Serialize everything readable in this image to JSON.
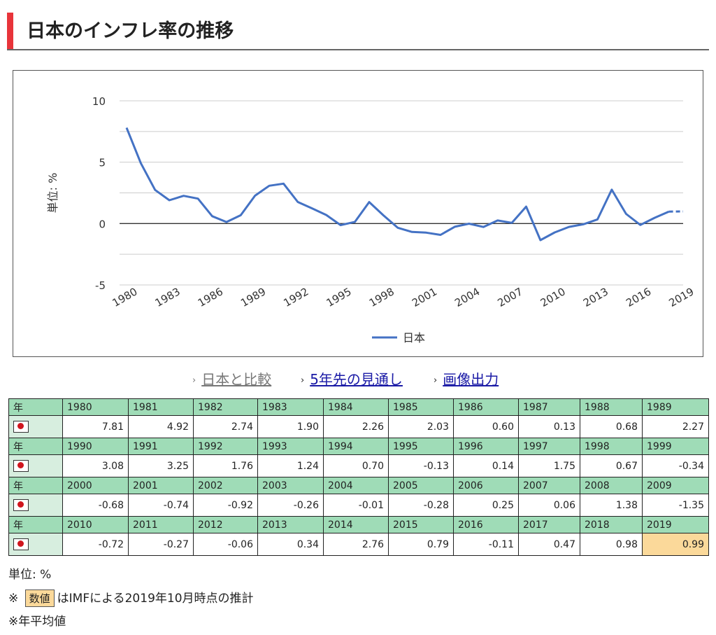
{
  "page": {
    "title": "日本のインフレ率の推移"
  },
  "chart_data": {
    "type": "line",
    "x": [
      1980,
      1981,
      1982,
      1983,
      1984,
      1985,
      1986,
      1987,
      1988,
      1989,
      1990,
      1991,
      1992,
      1993,
      1994,
      1995,
      1996,
      1997,
      1998,
      1999,
      2000,
      2001,
      2002,
      2003,
      2004,
      2005,
      2006,
      2007,
      2008,
      2009,
      2010,
      2011,
      2012,
      2013,
      2014,
      2015,
      2016,
      2017,
      2018,
      2019
    ],
    "series": [
      {
        "name": "日本",
        "color": "#4472c4",
        "values": [
          7.81,
          4.92,
          2.74,
          1.9,
          2.26,
          2.03,
          0.6,
          0.13,
          0.68,
          2.27,
          3.08,
          3.25,
          1.76,
          1.24,
          0.7,
          -0.13,
          0.14,
          1.75,
          0.67,
          -0.34,
          -0.68,
          -0.74,
          -0.92,
          -0.26,
          -0.01,
          -0.28,
          0.25,
          0.06,
          1.38,
          -1.35,
          -0.72,
          -0.27,
          -0.06,
          0.34,
          2.76,
          0.79,
          -0.11,
          0.47,
          0.98,
          0.99
        ]
      }
    ],
    "estimated_from": 2019,
    "ylim": [
      -5,
      10
    ],
    "ylabel": "単位: %",
    "xlabel": "",
    "yticks": [
      "10",
      "5",
      "0",
      "-5"
    ],
    "xticks": [
      "1980",
      "1983",
      "1986",
      "1989",
      "1992",
      "1995",
      "1998",
      "2001",
      "2004",
      "2007",
      "2010",
      "2013",
      "2016",
      "2019"
    ],
    "legend": "bottom",
    "grid": true
  },
  "links": {
    "compare": "日本と比較",
    "outlook": "5年先の見通し",
    "image": "画像出力",
    "arrow": "›"
  },
  "table": {
    "year_label": "年",
    "flag_icon": "japan-flag-icon",
    "estimate_color": "#fbd99a",
    "header_color": "#9fdcb7"
  },
  "notes": {
    "unit": "単位: %",
    "estimate_prefix": "※",
    "estimate_badge": "数値",
    "estimate_text": "はIMFによる2019年10月時点の推計",
    "average": "※年平均値"
  }
}
